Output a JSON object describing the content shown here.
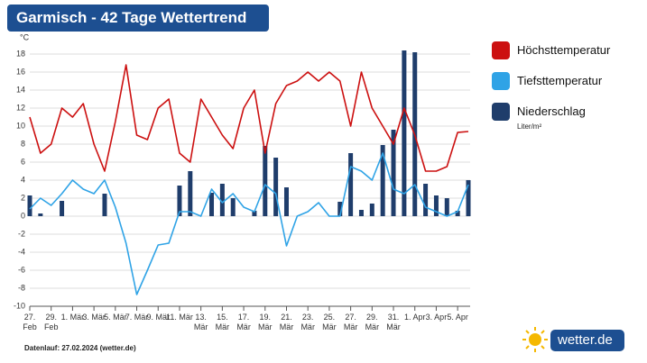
{
  "chart_data": {
    "type": "line",
    "title": "Garmisch - 42 Tage Wettertrend",
    "ylabel": "°C",
    "footer": "Datenlauf: 27.02.2024 (wetter.de)",
    "brand": "wetter.de",
    "categories": [
      "27. Feb",
      null,
      "29. Feb",
      null,
      "1. Mär",
      null,
      "3. Mär",
      null,
      "5. Mär",
      null,
      "7. Mär",
      null,
      "9. Mär",
      null,
      "11. Mär",
      null,
      "13. Mär",
      null,
      "15. Mär",
      null,
      "17. Mär",
      null,
      "19. Mär",
      null,
      "21. Mär",
      null,
      "23. Mär",
      null,
      "25. Mär",
      null,
      "27. Mär",
      null,
      "29. Mär",
      null,
      "31. Mär",
      null,
      "1. Apr",
      null,
      "3. Apr",
      null,
      "5. Apr",
      null
    ],
    "series": [
      {
        "name": "Höchsttemperatur",
        "type": "line",
        "color": "#cc1010",
        "values": [
          11,
          7,
          8,
          12,
          11,
          12.5,
          8,
          5,
          10.5,
          16.8,
          9,
          8.5,
          12,
          13,
          7,
          6,
          13,
          11,
          9,
          7.5,
          12,
          14,
          7,
          12.5,
          14.5,
          15,
          16,
          15,
          16,
          15,
          10,
          16,
          12,
          10,
          8,
          12,
          9,
          5,
          5,
          5.5,
          9.3,
          9.4
        ]
      },
      {
        "name": "Tiefsttemperatur",
        "type": "line",
        "color": "#2fa3e6",
        "values": [
          0.8,
          2,
          1.2,
          2.5,
          4,
          3,
          2.5,
          4,
          1,
          -3,
          -8.7,
          -6,
          -3.2,
          -3,
          0.5,
          0.5,
          0,
          3,
          1.5,
          2.5,
          1,
          0.5,
          3.5,
          2.5,
          -3.3,
          0,
          0.5,
          1.5,
          0,
          0,
          5.5,
          5,
          4,
          7,
          3,
          2.5,
          3.5,
          1,
          0.5,
          0,
          0.5,
          3.5
        ]
      },
      {
        "name": "Niederschlag",
        "type": "bar",
        "unit": "Liter/m²",
        "color": "#1f3d6b",
        "values": [
          2.3,
          0.3,
          0,
          1.7,
          0,
          0,
          0,
          2.5,
          0,
          0,
          0,
          0,
          0,
          0,
          3.4,
          5,
          0,
          2.6,
          3.6,
          2,
          0,
          0.6,
          7.8,
          6.5,
          3.2,
          0,
          0,
          0,
          0,
          1.6,
          7,
          0.7,
          1.4,
          7.9,
          9.6,
          18.4,
          18.2,
          3.6,
          2.3,
          2,
          0.6,
          4
        ]
      }
    ],
    "ylim": [
      -10,
      18
    ],
    "yticks": [
      -10,
      -8,
      -6,
      -4,
      -2,
      0,
      2,
      4,
      6,
      8,
      10,
      12,
      14,
      16,
      18
    ],
    "grid": true
  }
}
